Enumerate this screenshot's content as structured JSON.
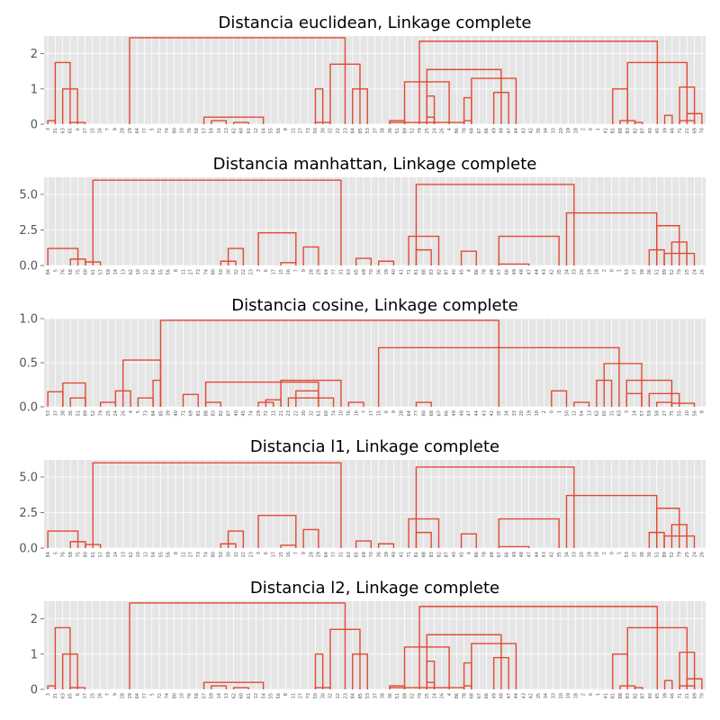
{
  "chart_data": [
    {
      "type": "dendrogram",
      "title": "Distancia euclidean, Linkage complete",
      "ylim": [
        0,
        2.5
      ],
      "yticks": [
        0,
        1,
        2
      ],
      "ytick_labels": [
        "0",
        "1",
        "2"
      ],
      "grid": true,
      "leaves": [
        "3",
        "31",
        "63",
        "65",
        "6",
        "17",
        "15",
        "16",
        "7",
        "9",
        "28",
        "29",
        "64",
        "77",
        "5",
        "72",
        "74",
        "80",
        "10",
        "76",
        "58",
        "57",
        "59",
        "14",
        "13",
        "62",
        "60",
        "61",
        "12",
        "54",
        "55",
        "56",
        "8",
        "11",
        "27",
        "73",
        "50",
        "30",
        "32",
        "22",
        "23",
        "84",
        "85",
        "53",
        "37",
        "38",
        "36",
        "51",
        "89",
        "52",
        "79",
        "25",
        "24",
        "26",
        "4",
        "86",
        "78",
        "68",
        "67",
        "66",
        "49",
        "48",
        "47",
        "44",
        "43",
        "42",
        "35",
        "34",
        "33",
        "20",
        "19",
        "18",
        "2",
        "0",
        "1",
        "41",
        "81",
        "88",
        "83",
        "82",
        "87",
        "40",
        "45",
        "39",
        "46",
        "71",
        "21",
        "69",
        "70"
      ],
      "links": [
        [
          0,
          1,
          5,
          0.1
        ],
        [
          3,
          5,
          20,
          0.05
        ],
        [
          21,
          29,
          32,
          0.2
        ],
        [
          22,
          24,
          28,
          0.1
        ],
        [
          25,
          27,
          34,
          0.05
        ],
        [
          2,
          4,
          21,
          1.0
        ],
        [
          1,
          3,
          20,
          1.75
        ],
        [
          36,
          38,
          42,
          0.05
        ],
        [
          36,
          37,
          40,
          1.0
        ],
        [
          41,
          43,
          44,
          1.0
        ],
        [
          38,
          42,
          41,
          1.7
        ],
        [
          46,
          48,
          50,
          0.1
        ],
        [
          51,
          52,
          53,
          0.2
        ],
        [
          51,
          52,
          55,
          0.8
        ],
        [
          56,
          57,
          58,
          0.1
        ],
        [
          56,
          57,
          59,
          0.75
        ],
        [
          60,
          62,
          64,
          0.9
        ],
        [
          57,
          63,
          61,
          1.3
        ],
        [
          48,
          54,
          60,
          1.2
        ],
        [
          51,
          61,
          61,
          1.55
        ],
        [
          46,
          56,
          77,
          0.05
        ],
        [
          77,
          79,
          81,
          0.1
        ],
        [
          79,
          80,
          82,
          0.05
        ],
        [
          76,
          78,
          80,
          1.0
        ],
        [
          83,
          84,
          86,
          0.25
        ],
        [
          85,
          87,
          88,
          0.1
        ],
        [
          86,
          88,
          89,
          0.3
        ],
        [
          85,
          87,
          88,
          1.05
        ],
        [
          78,
          86,
          86,
          1.75
        ],
        [
          50,
          82,
          84,
          2.35
        ],
        [
          11,
          40,
          67,
          2.45
        ]
      ]
    },
    {
      "type": "dendrogram",
      "title": "Distancia manhattan, Linkage complete",
      "ylim": [
        0,
        6.2
      ],
      "yticks": [
        0,
        2.5,
        5
      ],
      "ytick_labels": [
        "0.0",
        "2.5",
        "5.0"
      ],
      "grid": true,
      "leaves": [
        "84",
        "5",
        "76",
        "58",
        "75",
        "60",
        "61",
        "57",
        "59",
        "14",
        "13",
        "62",
        "10",
        "12",
        "54",
        "55",
        "56",
        "8",
        "11",
        "27",
        "73",
        "74",
        "80",
        "50",
        "30",
        "32",
        "22",
        "23",
        "3",
        "6",
        "17",
        "15",
        "16",
        "7",
        "9",
        "28",
        "29",
        "64",
        "77",
        "31",
        "63",
        "65",
        "69",
        "70",
        "36",
        "39",
        "40",
        "41",
        "71",
        "81",
        "88",
        "83",
        "82",
        "87",
        "40",
        "45",
        "4",
        "86",
        "78",
        "68",
        "67",
        "66",
        "49",
        "48",
        "47",
        "44",
        "43",
        "42",
        "35",
        "34",
        "33",
        "20",
        "19",
        "18",
        "2",
        "0",
        "1",
        "53",
        "37",
        "38",
        "36",
        "51",
        "89",
        "52",
        "79",
        "25",
        "24",
        "26"
      ],
      "links": [
        [
          0,
          4,
          8,
          1.2
        ],
        [
          3,
          5,
          16,
          0.45
        ],
        [
          5,
          7,
          20,
          0.25
        ],
        [
          23,
          25,
          27,
          0.3
        ],
        [
          24,
          26,
          30,
          1.2
        ],
        [
          31,
          33,
          37,
          0.2
        ],
        [
          34,
          36,
          40,
          1.3
        ],
        [
          28,
          33,
          42,
          2.3
        ],
        [
          41,
          43,
          45,
          0.5
        ],
        [
          44,
          46,
          48,
          0.3
        ],
        [
          49,
          51,
          53,
          1.1
        ],
        [
          48,
          52,
          52,
          2.05
        ],
        [
          55,
          57,
          85,
          1.0
        ],
        [
          60,
          64,
          78,
          0.1
        ],
        [
          60,
          68,
          83,
          2.05
        ],
        [
          80,
          82,
          84,
          1.1
        ],
        [
          82,
          86,
          87,
          0.85
        ],
        [
          83,
          85,
          86,
          1.65
        ],
        [
          81,
          84,
          84,
          2.8
        ],
        [
          69,
          81,
          79,
          3.7
        ],
        [
          49,
          70,
          64,
          5.7
        ],
        [
          6,
          39,
          57,
          6.0
        ]
      ]
    },
    {
      "type": "dendrogram",
      "title": "Distancia cosine, Linkage complete",
      "ylim": [
        0,
        1.0
      ],
      "yticks": [
        0,
        0.5,
        1
      ],
      "ytick_labels": [
        "0.0",
        "0.5",
        "1.0"
      ],
      "grid": true,
      "leaves": [
        "53",
        "37",
        "38",
        "36",
        "51",
        "89",
        "52",
        "79",
        "25",
        "24",
        "26",
        "4",
        "5",
        "73",
        "84",
        "85",
        "39",
        "40",
        "71",
        "69",
        "81",
        "88",
        "83",
        "82",
        "87",
        "40",
        "45",
        "74",
        "29",
        "72",
        "11",
        "21",
        "23",
        "22",
        "30",
        "32",
        "61",
        "60",
        "74",
        "10",
        "76",
        "16",
        "7",
        "17",
        "15",
        "6",
        "9",
        "28",
        "64",
        "77",
        "80",
        "68",
        "67",
        "66",
        "49",
        "48",
        "47",
        "44",
        "43",
        "42",
        "35",
        "34",
        "33",
        "20",
        "19",
        "18",
        "2",
        "0",
        "1",
        "50",
        "12",
        "54",
        "13",
        "62",
        "65",
        "31",
        "63",
        "3",
        "14",
        "57",
        "59",
        "58",
        "27",
        "75",
        "55",
        "10",
        "56",
        "8"
      ],
      "links": [
        [
          0,
          2,
          4,
          0.17
        ],
        [
          3,
          5,
          6,
          0.1
        ],
        [
          2,
          5,
          9,
          0.27
        ],
        [
          7,
          9,
          11,
          0.05
        ],
        [
          9,
          11,
          13,
          0.18
        ],
        [
          12,
          14,
          15,
          0.1
        ],
        [
          14,
          15,
          17,
          0.3
        ],
        [
          10,
          15,
          16,
          0.53
        ],
        [
          18,
          20,
          22,
          0.14
        ],
        [
          21,
          23,
          25,
          0.05
        ],
        [
          28,
          30,
          32,
          0.05
        ],
        [
          29,
          31,
          33,
          0.08
        ],
        [
          33,
          36,
          39,
          0.18
        ],
        [
          32,
          38,
          40,
          0.1
        ],
        [
          31,
          39,
          42,
          0.3
        ],
        [
          21,
          36,
          45,
          0.28
        ],
        [
          40,
          42,
          44,
          0.05
        ],
        [
          49,
          51,
          53,
          0.05
        ],
        [
          67,
          69,
          71,
          0.18
        ],
        [
          70,
          72,
          74,
          0.05
        ],
        [
          73,
          75,
          77,
          0.3
        ],
        [
          77,
          79,
          80,
          0.15
        ],
        [
          81,
          83,
          85,
          0.05
        ],
        [
          83,
          86,
          87,
          0.04
        ],
        [
          80,
          84,
          86,
          0.15
        ],
        [
          77,
          83,
          79,
          0.3
        ],
        [
          74,
          79,
          78,
          0.49
        ],
        [
          44,
          76,
          79,
          0.67
        ],
        [
          15,
          60,
          50,
          0.98
        ]
      ]
    },
    {
      "type": "dendrogram",
      "title": "Distancia l1, Linkage complete",
      "ylim": [
        0,
        6.2
      ],
      "yticks": [
        0,
        2.5,
        5
      ],
      "ytick_labels": [
        "0.0",
        "2.5",
        "5.0"
      ],
      "grid": true,
      "leaves": [
        "84",
        "5",
        "76",
        "58",
        "75",
        "60",
        "61",
        "57",
        "59",
        "14",
        "13",
        "62",
        "10",
        "12",
        "54",
        "55",
        "56",
        "8",
        "11",
        "27",
        "73",
        "74",
        "80",
        "50",
        "30",
        "32",
        "22",
        "23",
        "3",
        "6",
        "17",
        "15",
        "16",
        "7",
        "9",
        "28",
        "29",
        "64",
        "77",
        "31",
        "63",
        "65",
        "69",
        "70",
        "36",
        "39",
        "40",
        "41",
        "71",
        "81",
        "88",
        "83",
        "82",
        "87",
        "40",
        "45",
        "4",
        "86",
        "78",
        "68",
        "67",
        "66",
        "49",
        "48",
        "47",
        "44",
        "43",
        "42",
        "35",
        "34",
        "33",
        "20",
        "19",
        "18",
        "2",
        "0",
        "1",
        "53",
        "37",
        "38",
        "36",
        "51",
        "89",
        "52",
        "79",
        "25",
        "24",
        "26"
      ],
      "links": [
        [
          0,
          4,
          8,
          1.2
        ],
        [
          3,
          5,
          16,
          0.45
        ],
        [
          5,
          7,
          20,
          0.25
        ],
        [
          23,
          25,
          27,
          0.3
        ],
        [
          24,
          26,
          30,
          1.2
        ],
        [
          31,
          33,
          37,
          0.2
        ],
        [
          34,
          36,
          40,
          1.3
        ],
        [
          28,
          33,
          42,
          2.3
        ],
        [
          41,
          43,
          45,
          0.5
        ],
        [
          44,
          46,
          48,
          0.3
        ],
        [
          49,
          51,
          53,
          1.1
        ],
        [
          48,
          52,
          52,
          2.05
        ],
        [
          55,
          57,
          85,
          1.0
        ],
        [
          60,
          64,
          78,
          0.1
        ],
        [
          60,
          68,
          83,
          2.05
        ],
        [
          80,
          82,
          84,
          1.1
        ],
        [
          82,
          86,
          87,
          0.85
        ],
        [
          83,
          85,
          86,
          1.65
        ],
        [
          81,
          84,
          84,
          2.8
        ],
        [
          69,
          81,
          79,
          3.7
        ],
        [
          49,
          70,
          64,
          5.7
        ],
        [
          6,
          39,
          57,
          6.0
        ]
      ]
    },
    {
      "type": "dendrogram",
      "title": "Distancia l2, Linkage complete",
      "ylim": [
        0,
        2.5
      ],
      "yticks": [
        0,
        1,
        2
      ],
      "ytick_labels": [
        "0",
        "1",
        "2"
      ],
      "grid": true,
      "leaves": [
        "3",
        "31",
        "63",
        "65",
        "6",
        "17",
        "15",
        "16",
        "7",
        "9",
        "28",
        "29",
        "64",
        "77",
        "5",
        "72",
        "74",
        "80",
        "10",
        "76",
        "58",
        "57",
        "59",
        "14",
        "13",
        "62",
        "60",
        "61",
        "12",
        "54",
        "55",
        "56",
        "8",
        "11",
        "27",
        "73",
        "50",
        "30",
        "32",
        "22",
        "23",
        "84",
        "85",
        "53",
        "37",
        "38",
        "36",
        "51",
        "89",
        "52",
        "79",
        "25",
        "24",
        "26",
        "4",
        "86",
        "78",
        "68",
        "67",
        "66",
        "49",
        "48",
        "47",
        "44",
        "43",
        "42",
        "35",
        "34",
        "33",
        "20",
        "19",
        "18",
        "2",
        "0",
        "1",
        "41",
        "81",
        "88",
        "83",
        "82",
        "87",
        "40",
        "45",
        "39",
        "46",
        "71",
        "21",
        "69",
        "70"
      ],
      "links": [
        [
          0,
          1,
          5,
          0.1
        ],
        [
          3,
          5,
          20,
          0.05
        ],
        [
          21,
          29,
          32,
          0.2
        ],
        [
          22,
          24,
          28,
          0.1
        ],
        [
          25,
          27,
          34,
          0.05
        ],
        [
          2,
          4,
          21,
          1.0
        ],
        [
          1,
          3,
          20,
          1.75
        ],
        [
          36,
          38,
          42,
          0.05
        ],
        [
          36,
          37,
          40,
          1.0
        ],
        [
          41,
          43,
          44,
          1.0
        ],
        [
          38,
          42,
          41,
          1.7
        ],
        [
          46,
          48,
          50,
          0.1
        ],
        [
          51,
          52,
          53,
          0.2
        ],
        [
          51,
          52,
          55,
          0.8
        ],
        [
          56,
          57,
          58,
          0.1
        ],
        [
          56,
          57,
          59,
          0.75
        ],
        [
          60,
          62,
          64,
          0.9
        ],
        [
          57,
          63,
          61,
          1.3
        ],
        [
          48,
          54,
          60,
          1.2
        ],
        [
          51,
          61,
          61,
          1.55
        ],
        [
          46,
          56,
          77,
          0.05
        ],
        [
          77,
          79,
          81,
          0.1
        ],
        [
          79,
          80,
          82,
          0.05
        ],
        [
          76,
          78,
          80,
          1.0
        ],
        [
          83,
          84,
          86,
          0.25
        ],
        [
          85,
          87,
          88,
          0.1
        ],
        [
          86,
          88,
          89,
          0.3
        ],
        [
          85,
          87,
          88,
          1.05
        ],
        [
          78,
          86,
          86,
          1.75
        ],
        [
          50,
          82,
          84,
          2.35
        ],
        [
          11,
          40,
          67,
          2.45
        ]
      ]
    }
  ],
  "colors": {
    "background": "#ffffff",
    "plot_bg": "#e5e5e5",
    "grid": "#ffffff",
    "link": "#e24a33",
    "tick_text": "#555555"
  }
}
